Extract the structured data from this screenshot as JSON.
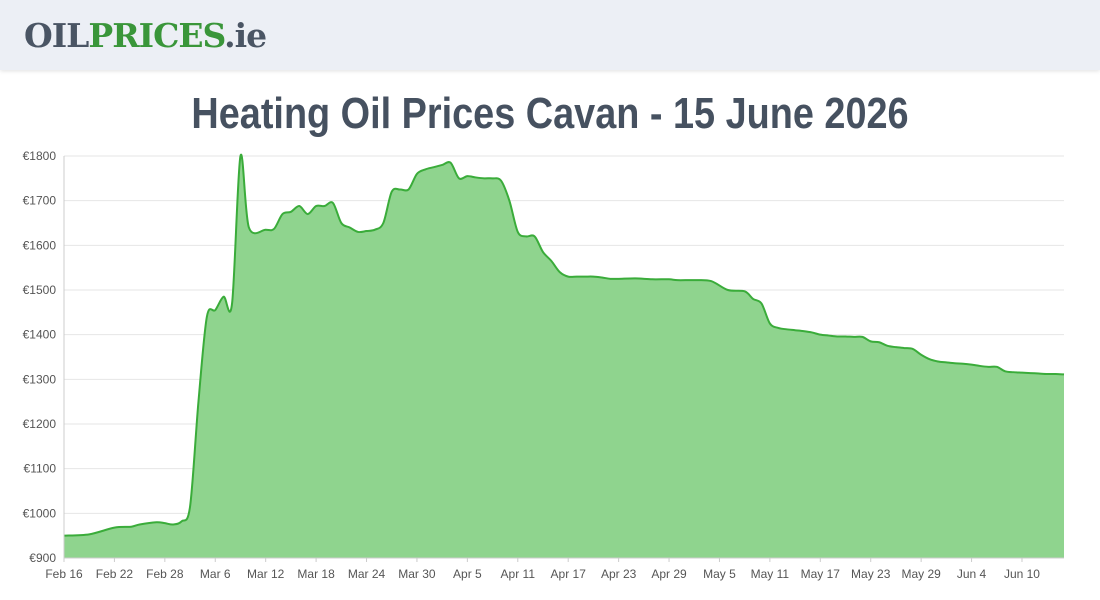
{
  "header": {
    "logo_part1": "OIL",
    "logo_part2": "PRICES",
    "logo_part3": ".ie"
  },
  "colors": {
    "area_fill": "#8fd48e",
    "line": "#3aac3a",
    "grid": "#e6e6e6",
    "header_bg": "#eceff5"
  },
  "chart_data": {
    "type": "area",
    "title": "Heating Oil Prices Cavan - 15 June 2026",
    "xlabel": "",
    "ylabel": "",
    "ylim": [
      900,
      1800
    ],
    "x_ticks": [
      "Feb 16",
      "Feb 22",
      "Feb 28",
      "Mar 6",
      "Mar 12",
      "Mar 18",
      "Mar 24",
      "Mar 30",
      "Apr 5",
      "Apr 11",
      "Apr 17",
      "Apr 23",
      "Apr 29",
      "May 5",
      "May 11",
      "May 17",
      "May 23",
      "May 29",
      "Jun 4",
      "Jun 10"
    ],
    "y_ticks": [
      "€900",
      "€1000",
      "€1100",
      "€1200",
      "€1300",
      "€1400",
      "€1500",
      "€1600",
      "€1700",
      "€1800"
    ],
    "grid": true,
    "series": [
      {
        "x": [
          "2026-02-16",
          "2026-02-19",
          "2026-02-22",
          "2026-02-24",
          "2026-02-25",
          "2026-02-27",
          "2026-02-28",
          "2026-03-01",
          "2026-03-02",
          "2026-03-03",
          "2026-03-04",
          "2026-03-05",
          "2026-03-06",
          "2026-03-07",
          "2026-03-08",
          "2026-03-09",
          "2026-03-10",
          "2026-03-12",
          "2026-03-13",
          "2026-03-14",
          "2026-03-15",
          "2026-03-16",
          "2026-03-17",
          "2026-03-18",
          "2026-03-19",
          "2026-03-20",
          "2026-03-21",
          "2026-03-22",
          "2026-03-23",
          "2026-03-24",
          "2026-03-25",
          "2026-03-26",
          "2026-03-27",
          "2026-03-28",
          "2026-03-29",
          "2026-03-30",
          "2026-03-31",
          "2026-04-01",
          "2026-04-02",
          "2026-04-03",
          "2026-04-04",
          "2026-04-05",
          "2026-04-06",
          "2026-04-07",
          "2026-04-08",
          "2026-04-09",
          "2026-04-10",
          "2026-04-11",
          "2026-04-12",
          "2026-04-13",
          "2026-04-14",
          "2026-04-15",
          "2026-04-16",
          "2026-04-17",
          "2026-04-18",
          "2026-04-19",
          "2026-04-20",
          "2026-04-21",
          "2026-04-22",
          "2026-04-23",
          "2026-04-25",
          "2026-04-27",
          "2026-04-29",
          "2026-04-30",
          "2026-05-02",
          "2026-05-04",
          "2026-05-06",
          "2026-05-08",
          "2026-05-09",
          "2026-05-10",
          "2026-05-11",
          "2026-05-12",
          "2026-05-13",
          "2026-05-14",
          "2026-05-15",
          "2026-05-16",
          "2026-05-17",
          "2026-05-18",
          "2026-05-19",
          "2026-05-20",
          "2026-05-21",
          "2026-05-22",
          "2026-05-23",
          "2026-05-24",
          "2026-05-25",
          "2026-05-26",
          "2026-05-27",
          "2026-05-28",
          "2026-05-29",
          "2026-05-30",
          "2026-05-31",
          "2026-06-01",
          "2026-06-02",
          "2026-06-03",
          "2026-06-04",
          "2026-06-05",
          "2026-06-06",
          "2026-06-07",
          "2026-06-08",
          "2026-06-09",
          "2026-06-10",
          "2026-06-11",
          "2026-06-12",
          "2026-06-13",
          "2026-06-14",
          "2026-06-15"
        ],
        "values": [
          950,
          953,
          968,
          970,
          975,
          980,
          978,
          975,
          982,
          1015,
          1250,
          1440,
          1455,
          1485,
          1470,
          1800,
          1640,
          1635,
          1637,
          1670,
          1675,
          1688,
          1670,
          1688,
          1688,
          1695,
          1650,
          1640,
          1630,
          1632,
          1635,
          1650,
          1720,
          1725,
          1725,
          1760,
          1770,
          1775,
          1780,
          1785,
          1750,
          1755,
          1752,
          1750,
          1750,
          1745,
          1700,
          1630,
          1620,
          1620,
          1585,
          1565,
          1540,
          1530,
          1530,
          1530,
          1530,
          1528,
          1525,
          1525,
          1526,
          1524,
          1524,
          1522,
          1522,
          1520,
          1500,
          1497,
          1480,
          1470,
          1425,
          1415,
          1412,
          1410,
          1408,
          1405,
          1400,
          1398,
          1396,
          1396,
          1395,
          1395,
          1385,
          1383,
          1375,
          1372,
          1370,
          1368,
          1355,
          1345,
          1340,
          1338,
          1336,
          1335,
          1333,
          1330,
          1328,
          1328,
          1318,
          1316,
          1315,
          1314,
          1313,
          1312,
          1312,
          1311
        ]
      }
    ]
  }
}
